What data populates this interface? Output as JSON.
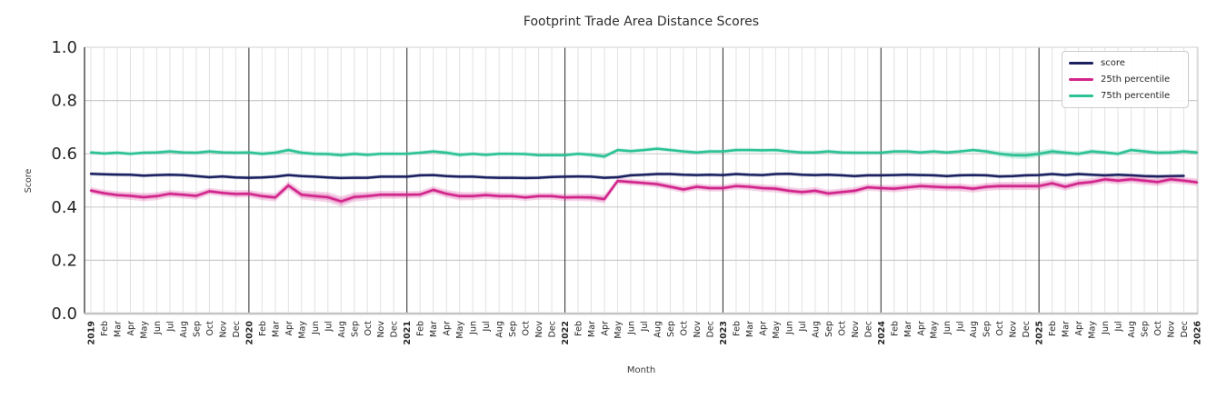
{
  "title": "Footprint Trade Area Distance Scores",
  "axes": {
    "xlabel": "Month",
    "ylabel": "Score"
  },
  "legend": {
    "items": [
      {
        "label": "score",
        "color": "#1b2160"
      },
      {
        "label": "25th percentile",
        "color": "#d2258c"
      },
      {
        "label": "75th percentile",
        "color": "#2cc295"
      }
    ]
  },
  "chart_data": {
    "type": "line",
    "title": "Footprint Trade Area Distance Scores",
    "xlabel": "Month",
    "ylabel": "Score",
    "ylim": [
      0.0,
      1.0
    ],
    "yticks": [
      0.0,
      0.2,
      0.4,
      0.6,
      0.8,
      1.0
    ],
    "grid": true,
    "legend_position": "upper right",
    "x_tick_labels": [
      "2019",
      "Feb",
      "Mar",
      "Apr",
      "May",
      "Jun",
      "Jul",
      "Aug",
      "Sep",
      "Oct",
      "Nov",
      "Dec",
      "2020",
      "Feb",
      "Mar",
      "Apr",
      "May",
      "Jun",
      "Jul",
      "Aug",
      "Sep",
      "Oct",
      "Nov",
      "Dec",
      "2021",
      "Feb",
      "Mar",
      "Apr",
      "May",
      "Jun",
      "Jul",
      "Aug",
      "Sep",
      "Oct",
      "Nov",
      "Dec",
      "2022",
      "Feb",
      "Mar",
      "Apr",
      "May",
      "Jun",
      "Jul",
      "Aug",
      "Sep",
      "Oct",
      "Nov",
      "Dec",
      "2023",
      "Feb",
      "Mar",
      "Apr",
      "May",
      "Jun",
      "Jul",
      "Aug",
      "Sep",
      "Oct",
      "Nov",
      "Dec",
      "2024",
      "Feb",
      "Mar",
      "Apr",
      "May",
      "Jun",
      "Jul",
      "Aug",
      "Sep",
      "Oct",
      "Nov",
      "Dec",
      "2025",
      "Feb",
      "Mar",
      "Apr",
      "May",
      "Jun",
      "Jul",
      "Aug",
      "Sep",
      "Oct",
      "Nov",
      "Dec",
      "2026"
    ],
    "year_line_indices": [
      12,
      24,
      36,
      48,
      60,
      72
    ],
    "series": [
      {
        "name": "score",
        "color": "#1b2160",
        "band": 0.007,
        "values": [
          0.525,
          0.523,
          0.522,
          0.521,
          0.518,
          0.52,
          0.521,
          0.52,
          0.516,
          0.512,
          0.515,
          0.511,
          0.51,
          0.511,
          0.514,
          0.52,
          0.516,
          0.514,
          0.511,
          0.509,
          0.51,
          0.51,
          0.514,
          0.514,
          0.514,
          0.519,
          0.52,
          0.516,
          0.514,
          0.514,
          0.511,
          0.51,
          0.51,
          0.509,
          0.51,
          0.513,
          0.514,
          0.515,
          0.514,
          0.51,
          0.512,
          0.519,
          0.521,
          0.524,
          0.524,
          0.521,
          0.52,
          0.521,
          0.52,
          0.524,
          0.521,
          0.52,
          0.524,
          0.525,
          0.521,
          0.52,
          0.521,
          0.519,
          0.516,
          0.519,
          0.519,
          0.52,
          0.521,
          0.52,
          0.519,
          0.516,
          0.519,
          0.52,
          0.519,
          0.515,
          0.516,
          0.519,
          0.52,
          0.524,
          0.52,
          0.524,
          0.521,
          0.519,
          0.521,
          0.519,
          0.516,
          0.515,
          0.516,
          0.517,
          null
        ]
      },
      {
        "name": "25th percentile",
        "color": "#d2258c",
        "band": [
          0.013,
          0.013,
          0.014,
          0.015,
          0.016,
          0.015,
          0.014,
          0.014,
          0.015,
          0.013,
          0.013,
          0.014,
          0.014,
          0.015,
          0.016,
          0.016,
          0.017,
          0.018,
          0.019,
          0.02,
          0.018,
          0.016,
          0.015,
          0.015,
          0.014,
          0.014,
          0.014,
          0.015,
          0.016,
          0.015,
          0.014,
          0.014,
          0.013,
          0.013,
          0.013,
          0.013,
          0.014,
          0.014,
          0.015,
          0.016,
          0.012,
          0.012,
          0.012,
          0.013,
          0.013,
          0.013,
          0.013,
          0.013,
          0.013,
          0.013,
          0.013,
          0.014,
          0.014,
          0.014,
          0.014,
          0.014,
          0.014,
          0.014,
          0.014,
          0.013,
          0.013,
          0.014,
          0.014,
          0.014,
          0.015,
          0.015,
          0.015,
          0.015,
          0.015,
          0.016,
          0.016,
          0.016,
          0.016,
          0.015,
          0.015,
          0.015,
          0.014,
          0.014,
          0.014,
          0.014,
          0.015,
          0.015,
          0.014,
          0.014,
          0.014
        ],
        "values": [
          0.462,
          0.452,
          0.445,
          0.442,
          0.437,
          0.441,
          0.45,
          0.446,
          0.442,
          0.459,
          0.453,
          0.449,
          0.45,
          0.441,
          0.436,
          0.481,
          0.446,
          0.441,
          0.437,
          0.421,
          0.438,
          0.441,
          0.446,
          0.446,
          0.446,
          0.447,
          0.464,
          0.45,
          0.441,
          0.441,
          0.445,
          0.441,
          0.441,
          0.436,
          0.441,
          0.441,
          0.436,
          0.437,
          0.436,
          0.43,
          0.498,
          0.494,
          0.49,
          0.486,
          0.476,
          0.466,
          0.476,
          0.471,
          0.471,
          0.479,
          0.476,
          0.471,
          0.469,
          0.461,
          0.456,
          0.461,
          0.451,
          0.456,
          0.461,
          0.474,
          0.471,
          0.469,
          0.474,
          0.479,
          0.476,
          0.474,
          0.474,
          0.469,
          0.476,
          0.479,
          0.479,
          0.479,
          0.479,
          0.489,
          0.476,
          0.489,
          0.494,
          0.504,
          0.499,
          0.504,
          0.499,
          0.494,
          0.504,
          0.499,
          0.493
        ]
      },
      {
        "name": "75th percentile",
        "color": "#2cc295",
        "band": [
          0.008,
          0.008,
          0.008,
          0.008,
          0.008,
          0.008,
          0.008,
          0.008,
          0.008,
          0.008,
          0.008,
          0.008,
          0.008,
          0.009,
          0.009,
          0.009,
          0.009,
          0.009,
          0.009,
          0.009,
          0.009,
          0.008,
          0.008,
          0.008,
          0.008,
          0.008,
          0.008,
          0.009,
          0.009,
          0.008,
          0.008,
          0.008,
          0.008,
          0.008,
          0.008,
          0.008,
          0.008,
          0.008,
          0.009,
          0.01,
          0.008,
          0.008,
          0.008,
          0.008,
          0.008,
          0.008,
          0.008,
          0.008,
          0.008,
          0.008,
          0.008,
          0.008,
          0.008,
          0.008,
          0.008,
          0.008,
          0.008,
          0.008,
          0.008,
          0.008,
          0.008,
          0.008,
          0.008,
          0.008,
          0.008,
          0.008,
          0.008,
          0.008,
          0.009,
          0.011,
          0.013,
          0.014,
          0.013,
          0.011,
          0.01,
          0.01,
          0.009,
          0.009,
          0.009,
          0.009,
          0.009,
          0.009,
          0.009,
          0.009,
          0.009
        ],
        "values": [
          0.605,
          0.601,
          0.604,
          0.6,
          0.604,
          0.605,
          0.609,
          0.605,
          0.604,
          0.609,
          0.605,
          0.604,
          0.605,
          0.6,
          0.604,
          0.614,
          0.604,
          0.6,
          0.599,
          0.595,
          0.6,
          0.596,
          0.6,
          0.6,
          0.6,
          0.604,
          0.609,
          0.604,
          0.596,
          0.6,
          0.596,
          0.6,
          0.6,
          0.599,
          0.595,
          0.595,
          0.595,
          0.6,
          0.596,
          0.59,
          0.614,
          0.61,
          0.614,
          0.619,
          0.614,
          0.609,
          0.605,
          0.609,
          0.609,
          0.614,
          0.614,
          0.613,
          0.614,
          0.609,
          0.605,
          0.605,
          0.609,
          0.605,
          0.604,
          0.604,
          0.604,
          0.609,
          0.609,
          0.605,
          0.609,
          0.605,
          0.609,
          0.614,
          0.609,
          0.6,
          0.595,
          0.594,
          0.6,
          0.609,
          0.604,
          0.6,
          0.609,
          0.605,
          0.6,
          0.614,
          0.609,
          0.604,
          0.605,
          0.609,
          0.605
        ]
      }
    ]
  }
}
